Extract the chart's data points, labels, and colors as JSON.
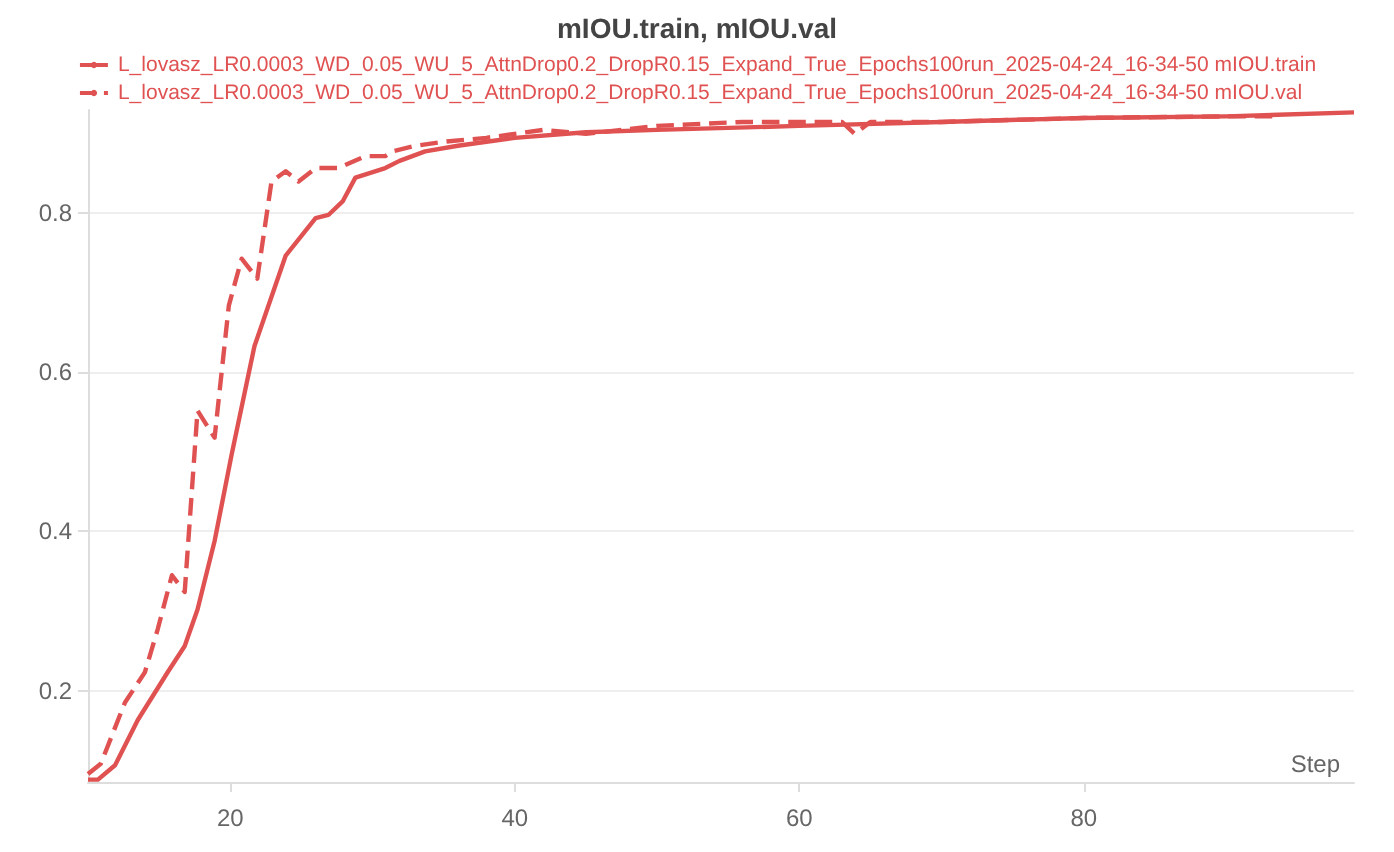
{
  "chart_data": {
    "type": "line",
    "title": "mIOU.train, mIOU.val",
    "xlabel": "Step",
    "xlim": [
      10,
      99
    ],
    "xticks": [
      20,
      40,
      60,
      80
    ],
    "ylim": [
      0.085,
      0.93
    ],
    "yticks": [
      0.2,
      0.4,
      0.6,
      0.8
    ],
    "grid": "y",
    "legend": "top",
    "marker": "none",
    "series": [
      {
        "name": "L_lovasz_LR0.0003_WD_0.05_WU_5_AttnDrop0.2_DropR0.15_Expand_True_Epochs100run_2025-04-24_16-34-50 mIOU.train",
        "color": "#e05252",
        "line_style": "solid",
        "x": [
          10,
          10.7,
          11.9,
          13.5,
          15.6,
          16.8,
          17.7,
          18.9,
          20.1,
          21.7,
          23.9,
          26,
          26.9,
          27.9,
          28.8,
          30.9,
          31.9,
          33.7,
          36,
          40,
          45,
          50,
          60,
          70,
          80,
          90,
          99
        ],
        "values": [
          0.088,
          0.088,
          0.106,
          0.163,
          0.223,
          0.256,
          0.302,
          0.388,
          0.497,
          0.633,
          0.747,
          0.794,
          0.798,
          0.815,
          0.845,
          0.857,
          0.866,
          0.878,
          0.885,
          0.895,
          0.902,
          0.905,
          0.91,
          0.915,
          0.92,
          0.922,
          0.927
        ]
      },
      {
        "name": "L_lovasz_LR0.0003_WD_0.05_WU_5_AttnDrop0.2_DropR0.15_Expand_True_Epochs100run_2025-04-24_16-34-50 mIOU.val",
        "color": "#e05252",
        "line_style": "dashed",
        "x": [
          10,
          10.9,
          12.6,
          14,
          14.9,
          15.9,
          16.8,
          17.7,
          18.9,
          19.9,
          20.8,
          21.9,
          22.9,
          23.9,
          24.8,
          26,
          27.6,
          29.5,
          30.9,
          31.4,
          33,
          35,
          38,
          42,
          45,
          50,
          56,
          63,
          63.9,
          65,
          70,
          80,
          90,
          93.6
        ],
        "values": [
          0.095,
          0.108,
          0.185,
          0.223,
          0.277,
          0.345,
          0.324,
          0.552,
          0.518,
          0.684,
          0.743,
          0.718,
          0.84,
          0.853,
          0.84,
          0.857,
          0.857,
          0.872,
          0.872,
          0.878,
          0.885,
          0.89,
          0.895,
          0.905,
          0.9,
          0.91,
          0.915,
          0.915,
          0.9,
          0.915,
          0.915,
          0.92,
          0.922,
          0.922
        ]
      }
    ]
  }
}
